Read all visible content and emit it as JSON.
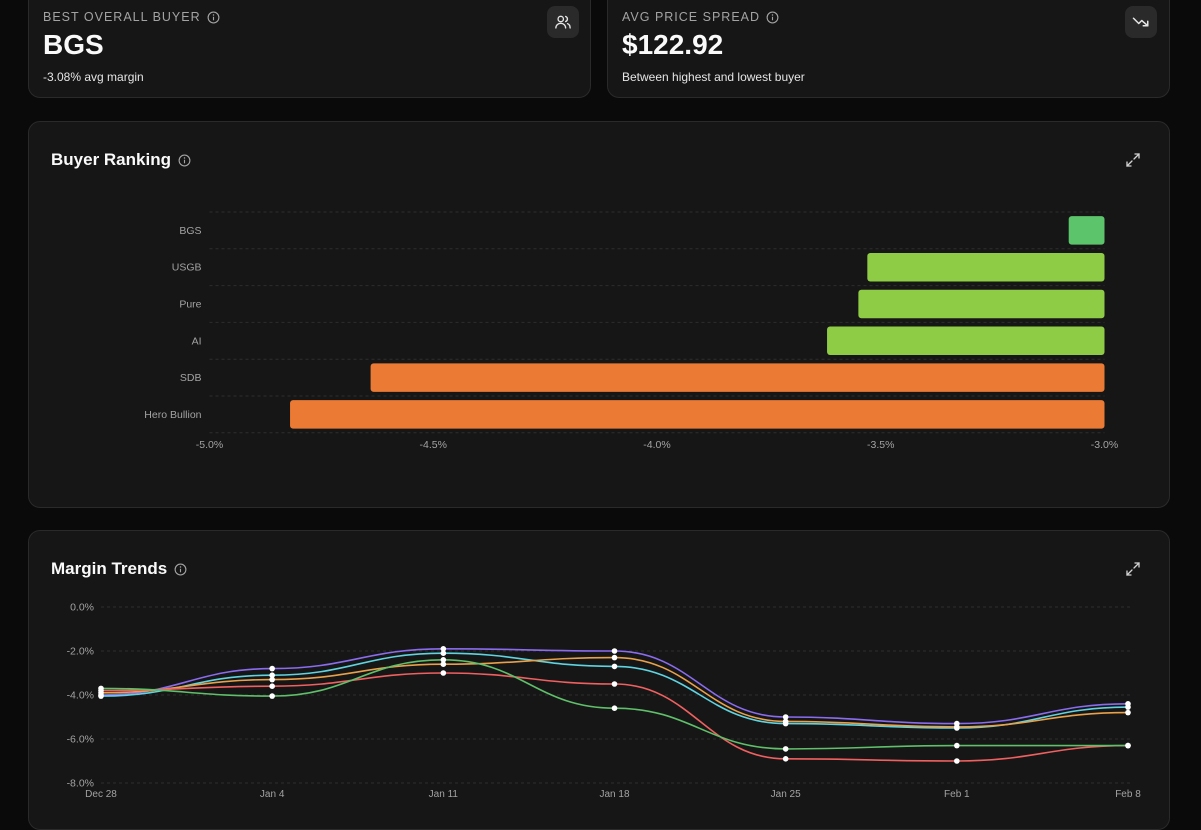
{
  "cards": {
    "best_buyer": {
      "label": "BEST OVERALL BUYER",
      "value": "BGS",
      "sub": "-3.08% avg margin",
      "icon": "users-icon"
    },
    "price_spread": {
      "label": "AVG PRICE SPREAD",
      "value": "$122.92",
      "sub": "Between highest and lowest buyer",
      "icon": "trending-down-icon"
    }
  },
  "ranking": {
    "title": "Buyer Ranking",
    "chart_data": {
      "type": "bar",
      "orientation": "horizontal",
      "categories": [
        "BGS",
        "USGB",
        "Pure",
        "AI",
        "SDB",
        "Hero Bullion"
      ],
      "values": [
        -3.08,
        -3.53,
        -3.55,
        -3.62,
        -4.64,
        -4.82
      ],
      "colors": [
        "#5cc46a",
        "#8fcc46",
        "#8fcc46",
        "#8fcc46",
        "#ea7a34",
        "#ea7a34"
      ],
      "xlim": [
        -5.0,
        -3.0
      ],
      "xticks": [
        -5.0,
        -4.5,
        -4.0,
        -3.5,
        -3.0
      ],
      "tick_labels": [
        "-5.0%",
        "-4.5%",
        "-4.0%",
        "-3.5%",
        "-3.0%"
      ],
      "grid": true
    }
  },
  "trends": {
    "title": "Margin Trends",
    "chart_data": {
      "type": "line",
      "x": [
        "Dec 28",
        "Jan 4",
        "Jan 11",
        "Jan 18",
        "Jan 25",
        "Feb 1",
        "Feb 8"
      ],
      "ylim": [
        -8.0,
        0.0
      ],
      "yticks": [
        0,
        -2,
        -4,
        -6,
        -8
      ],
      "ytick_labels": [
        "0.0%",
        "-2.0%",
        "-4.0%",
        "-6.0%",
        "-8.0%"
      ],
      "series": [
        {
          "color": "#8b6cf0",
          "values": [
            -4.0,
            -2.8,
            -1.9,
            -2.0,
            -5.0,
            -5.3,
            -4.4
          ]
        },
        {
          "color": "#5fd4e0",
          "values": [
            -4.05,
            -3.1,
            -2.1,
            -2.7,
            -5.3,
            -5.5,
            -4.55
          ]
        },
        {
          "color": "#e8a14a",
          "values": [
            -3.9,
            -3.3,
            -2.6,
            -2.3,
            -5.2,
            -5.45,
            -4.8
          ]
        },
        {
          "color": "#f06060",
          "values": [
            -3.8,
            -3.6,
            -3.0,
            -3.5,
            -6.9,
            -7.0,
            -6.3
          ]
        },
        {
          "color": "#5fbf6a",
          "values": [
            -3.7,
            -4.05,
            -2.4,
            -4.6,
            -6.45,
            -6.3,
            -6.3
          ]
        }
      ]
    }
  }
}
